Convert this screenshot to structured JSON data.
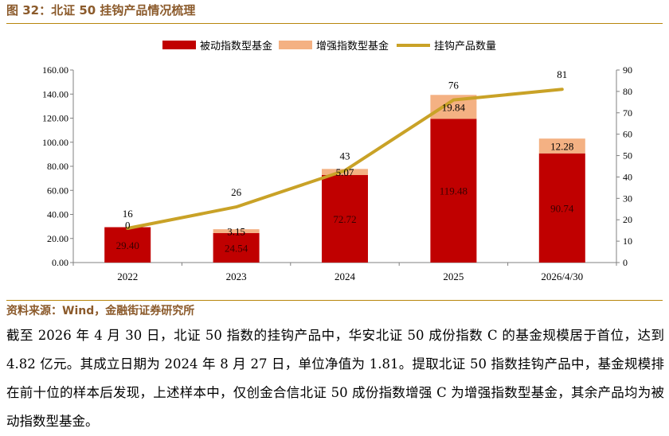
{
  "figure_title": "图 32：北证 50 挂钩产品情况梳理",
  "source": "资料来源：Wind，金融街证券研究所",
  "body_text": "截至 2026 年 4 月 30 日，北证 50 指数的挂钩产品中，华安北证 50 成份指数 C 的基金规模居于首位，达到 4.82 亿元。其成立日期为 2024 年 8 月 27 日，单位净值为 1.81。提取北证 50 指数挂钩产品中，基金规模排在前十位的样本后发现，上述样本中，仅创金合信北证 50 成份指数增强 C 为增强指数型基金，其余产品均为被动指数型基金。",
  "chart_data": {
    "type": "bar",
    "stacked": true,
    "categories": [
      "2022",
      "2023",
      "2024",
      "2025",
      "2026/4/30"
    ],
    "series": [
      {
        "name": "被动指数型基金",
        "kind": "bar",
        "axis": "left",
        "color": "#C00000",
        "values": [
          29.4,
          24.54,
          72.72,
          119.48,
          90.74
        ],
        "labels": [
          "29.40",
          "24.54",
          "72.72",
          "119.48",
          "90.74"
        ]
      },
      {
        "name": "增强指数型基金",
        "kind": "bar",
        "axis": "left",
        "color": "#F4B183",
        "values": [
          0,
          3.15,
          5.07,
          19.84,
          12.28
        ],
        "labels": [
          "0",
          "3.15",
          "5.07",
          "19.84",
          "12.28"
        ]
      },
      {
        "name": "挂钩产品数量",
        "kind": "line",
        "axis": "right",
        "color": "#C9A227",
        "values": [
          16,
          26,
          43,
          76,
          81
        ],
        "labels": [
          "16",
          "26",
          "43",
          "76",
          "81"
        ]
      }
    ],
    "y_left": {
      "min": 0,
      "max": 160,
      "step": 20,
      "ticks": [
        "0.00",
        "20.00",
        "40.00",
        "60.00",
        "80.00",
        "100.00",
        "120.00",
        "140.00",
        "160.00"
      ]
    },
    "y_right": {
      "min": 0,
      "max": 90,
      "step": 10,
      "ticks": [
        "0",
        "10",
        "20",
        "30",
        "40",
        "50",
        "60",
        "70",
        "80",
        "90"
      ]
    },
    "legend_position": "top",
    "grid": false
  }
}
